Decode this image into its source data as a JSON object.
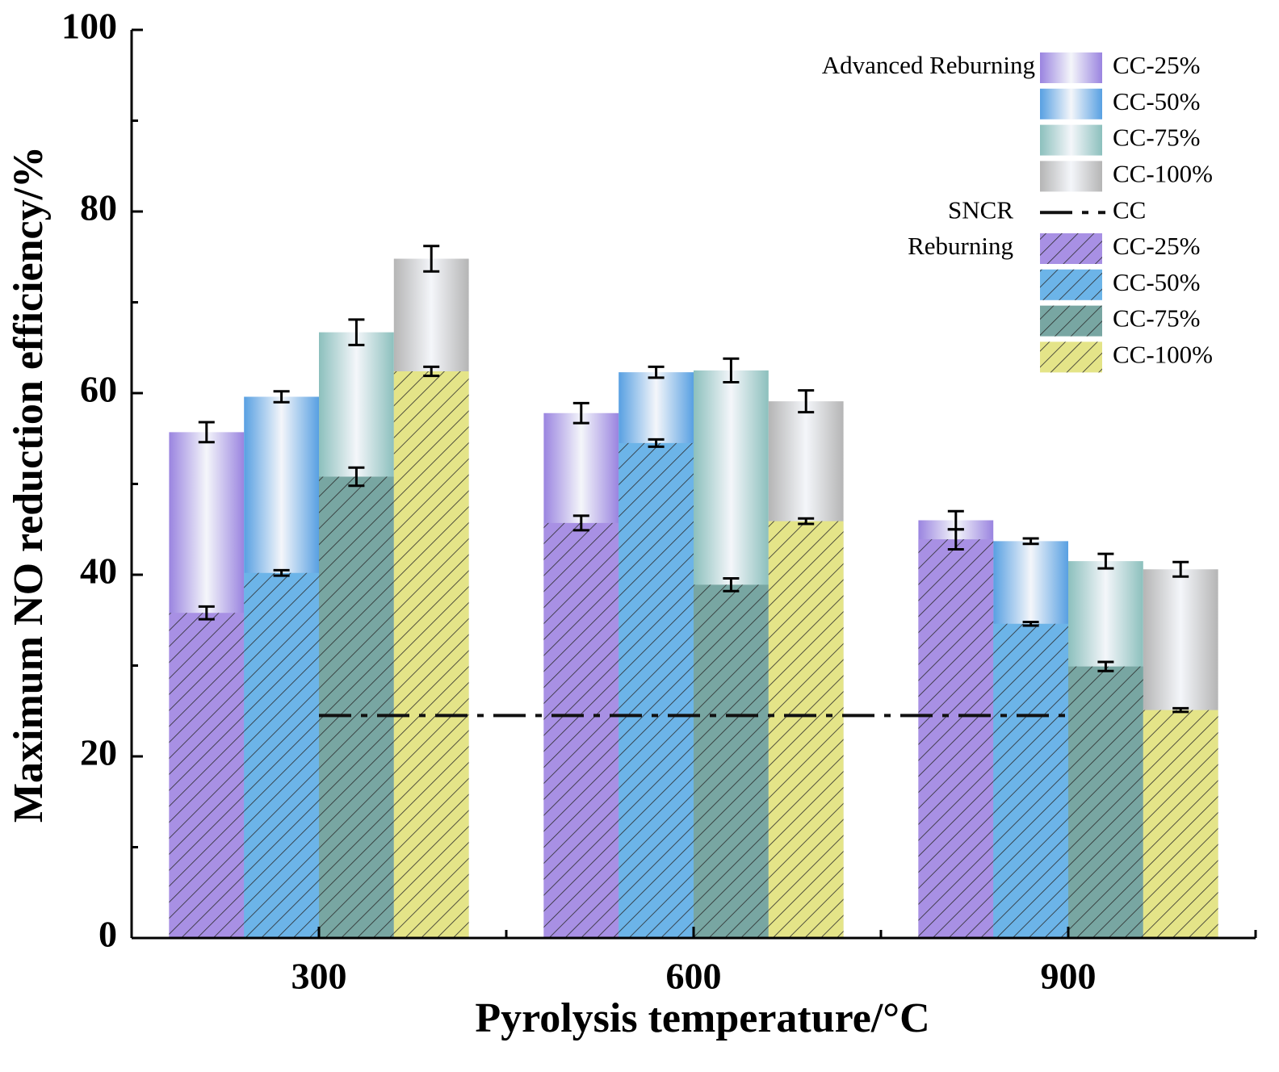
{
  "chart_data": {
    "type": "bar",
    "x_label": "Pyrolysis temperature/°C",
    "y_label": "Maximum NO reduction efficiency/%",
    "categories": [
      "300",
      "600",
      "900"
    ],
    "ylim": [
      0,
      100
    ],
    "yticks": [
      0,
      20,
      40,
      60,
      80,
      100
    ],
    "yminorticks": [
      10,
      30,
      50,
      70,
      90
    ],
    "groups": [
      {
        "label": "Advanced Reburning",
        "hatch": false,
        "series": [
          {
            "name": "CC-25%",
            "color": "#9a84e0",
            "values": [
              55.7,
              57.8,
              46.0
            ],
            "errors": [
              1.1,
              1.1,
              1.0
            ]
          },
          {
            "name": "CC-50%",
            "color": "#58a0e2",
            "values": [
              59.6,
              62.3,
              43.7
            ],
            "errors": [
              0.6,
              0.6,
              0.3
            ]
          },
          {
            "name": "CC-75%",
            "color": "#8cc0bd",
            "values": [
              66.7,
              62.5,
              41.5
            ],
            "errors": [
              1.4,
              1.3,
              0.8
            ]
          },
          {
            "name": "CC-100%",
            "color": "#b5b5b5",
            "values": [
              74.8,
              59.1,
              40.6
            ],
            "errors": [
              1.4,
              1.2,
              0.8
            ]
          }
        ]
      },
      {
        "label": "Reburning",
        "hatch": true,
        "series": [
          {
            "name": "CC-25%",
            "color": "#a890e4",
            "values": [
              35.8,
              45.7,
              43.9
            ],
            "errors": [
              0.7,
              0.8,
              1.1
            ]
          },
          {
            "name": "CC-50%",
            "color": "#6cb4e8",
            "values": [
              40.2,
              54.5,
              34.6
            ],
            "errors": [
              0.3,
              0.4,
              0.2
            ]
          },
          {
            "name": "CC-75%",
            "color": "#78a6a2",
            "values": [
              50.8,
              38.9,
              29.9
            ],
            "errors": [
              1.0,
              0.7,
              0.5
            ]
          },
          {
            "name": "CC-100%",
            "color": "#e4e488",
            "values": [
              62.4,
              45.9,
              25.1
            ],
            "errors": [
              0.5,
              0.3,
              0.2
            ]
          }
        ]
      }
    ],
    "reference_line": {
      "group_label": "SNCR",
      "name": "CC",
      "color": "#111111",
      "values": [
        24.5,
        24.5,
        24.5
      ]
    }
  }
}
